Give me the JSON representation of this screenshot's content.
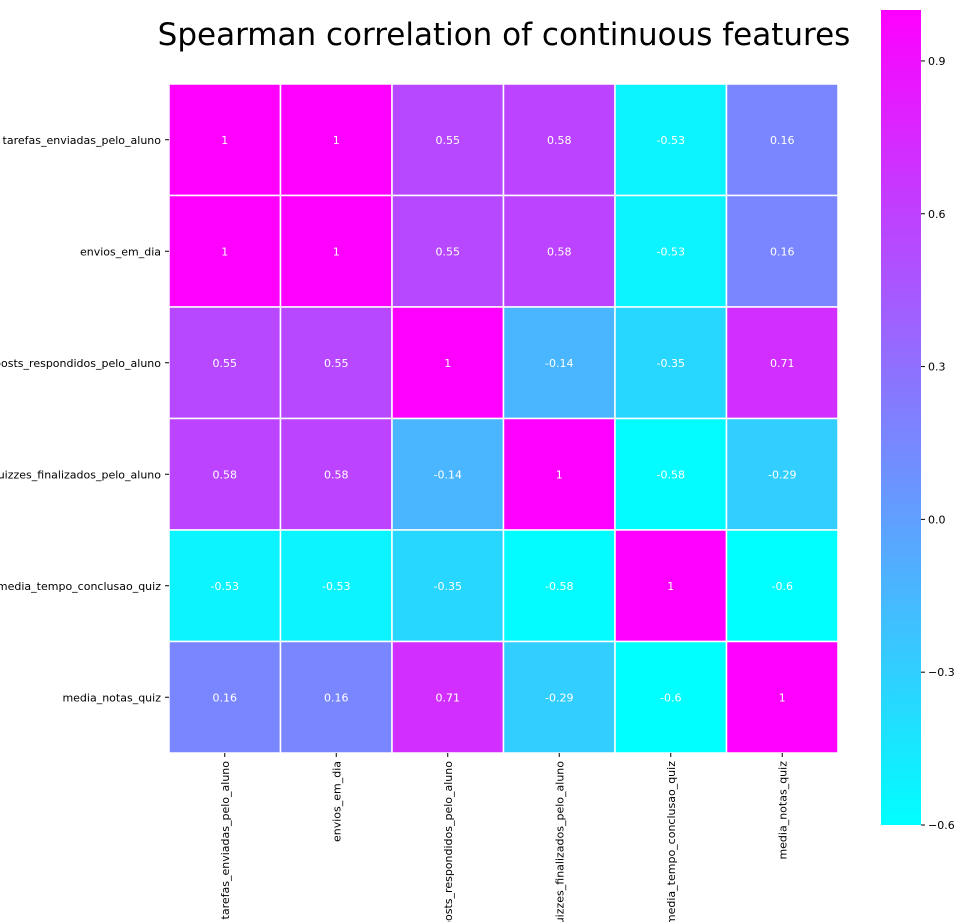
{
  "chart_data": {
    "type": "heatmap",
    "title": "Spearman correlation of continuous features",
    "row_labels": [
      "tarefas_enviadas_pelo_aluno",
      "envios_em_dia",
      "posts_respondidos_pelo_aluno",
      "quizzes_finalizados_pelo_aluno",
      "media_tempo_conclusao_quiz",
      "media_notas_quiz"
    ],
    "col_labels": [
      "tarefas_enviadas_pelo_aluno",
      "envios_em_dia",
      "posts_respondidos_pelo_aluno",
      "quizzes_finalizados_pelo_aluno",
      "media_tempo_conclusao_quiz",
      "media_notas_quiz"
    ],
    "values": [
      [
        1,
        1,
        0.55,
        0.58,
        -0.53,
        0.16
      ],
      [
        1,
        1,
        0.55,
        0.58,
        -0.53,
        0.16
      ],
      [
        0.55,
        0.55,
        1,
        -0.14,
        -0.35,
        0.71
      ],
      [
        0.58,
        0.58,
        -0.14,
        1,
        -0.58,
        -0.29
      ],
      [
        -0.53,
        -0.53,
        -0.35,
        -0.58,
        1,
        -0.6
      ],
      [
        0.16,
        0.16,
        0.71,
        -0.29,
        -0.6,
        1
      ]
    ],
    "cell_labels": [
      [
        "1",
        "1",
        "0.55",
        "0.58",
        "-0.53",
        "0.16"
      ],
      [
        "1",
        "1",
        "0.55",
        "0.58",
        "-0.53",
        "0.16"
      ],
      [
        "0.55",
        "0.55",
        "1",
        "-0.14",
        "-0.35",
        "0.71"
      ],
      [
        "0.58",
        "0.58",
        "-0.14",
        "1",
        "-0.58",
        "-0.29"
      ],
      [
        "-0.53",
        "-0.53",
        "-0.35",
        "-0.58",
        "1",
        "-0.6"
      ],
      [
        "0.16",
        "0.16",
        "0.71",
        "-0.29",
        "-0.6",
        "1"
      ]
    ],
    "colormap": "cool",
    "color_low": "#00ffff",
    "color_high": "#ff00ff",
    "cell_text_color": "#ffffff",
    "vmin": -0.6,
    "vmax": 1,
    "colorbar": {
      "position": "right",
      "ticks": [
        0.9,
        0.6,
        0.3,
        0.0,
        -0.3,
        -0.6
      ],
      "tick_labels": [
        "0.9",
        "0.6",
        "0.3",
        "0.0",
        "−0.3",
        "−0.6"
      ]
    },
    "grid": false
  }
}
